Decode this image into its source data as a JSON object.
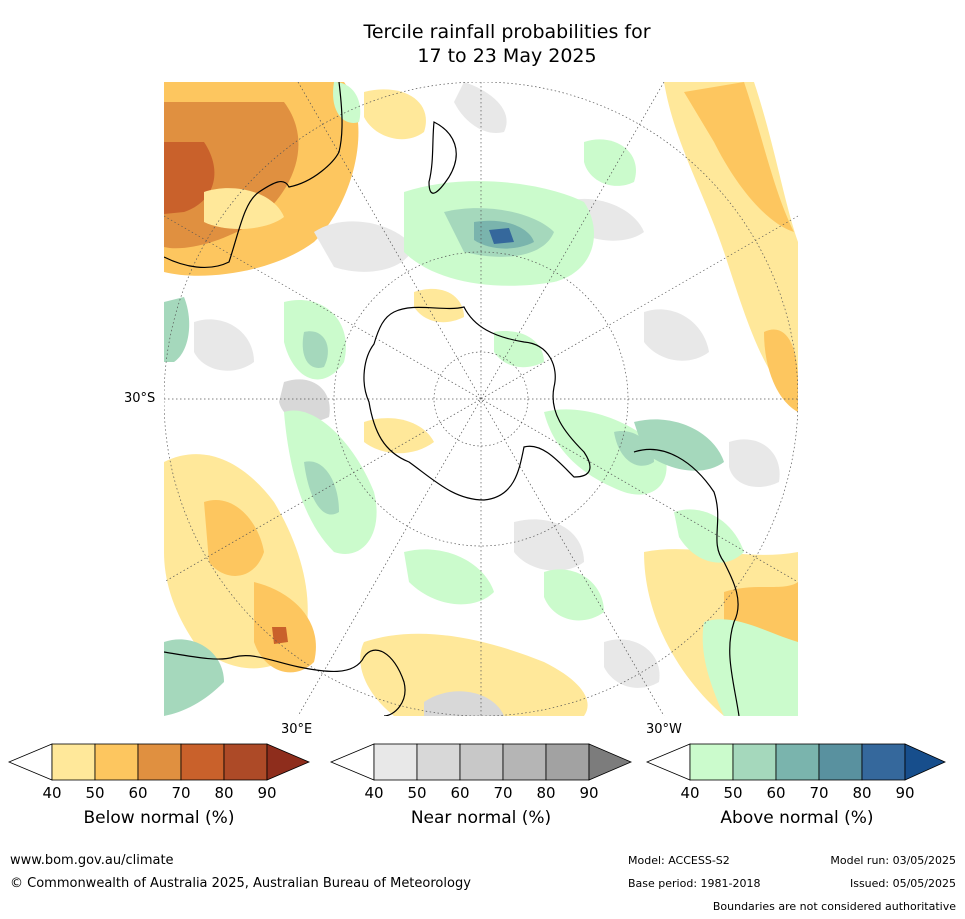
{
  "title": {
    "line1": "Tercile rainfall probabilities for",
    "line2": "17 to 23 May 2025"
  },
  "map": {
    "projection": "south-polar stereographic",
    "labels": {
      "lat": "30°S",
      "lon_east": "30°E",
      "lon_west": "30°W"
    }
  },
  "colorbars": [
    {
      "label": "Below normal (%)",
      "ticks": [
        "40",
        "50",
        "60",
        "70",
        "80",
        "90"
      ],
      "colors": [
        "#ffffff",
        "#ffe89a",
        "#fdc65f",
        "#e09040",
        "#c9612b",
        "#ad4a27",
        "#8e2d1c"
      ]
    },
    {
      "label": "Near normal (%)",
      "ticks": [
        "40",
        "50",
        "60",
        "70",
        "80",
        "90"
      ],
      "colors": [
        "#ffffff",
        "#e8e8e8",
        "#d8d8d8",
        "#c8c8c8",
        "#b5b5b5",
        "#a2a2a2",
        "#7c7c7c"
      ]
    },
    {
      "label": "Above normal (%)",
      "ticks": [
        "40",
        "50",
        "60",
        "70",
        "80",
        "90"
      ],
      "colors": [
        "#ffffff",
        "#cbfbcc",
        "#a5d8bc",
        "#7ab4ad",
        "#59919f",
        "#35689c",
        "#174e8c"
      ]
    }
  ],
  "footer": {
    "website": "www.bom.gov.au/climate",
    "copyright": "© Commonwealth of Australia 2025, Australian Bureau of Meteorology",
    "model": "Model: ACCESS-S2",
    "base_period": "Base period: 1981-2018",
    "model_run": "Model run: 03/05/2025",
    "issued": "Issued: 05/05/2025",
    "disclaimer": "Boundaries are not considered authoritative"
  }
}
